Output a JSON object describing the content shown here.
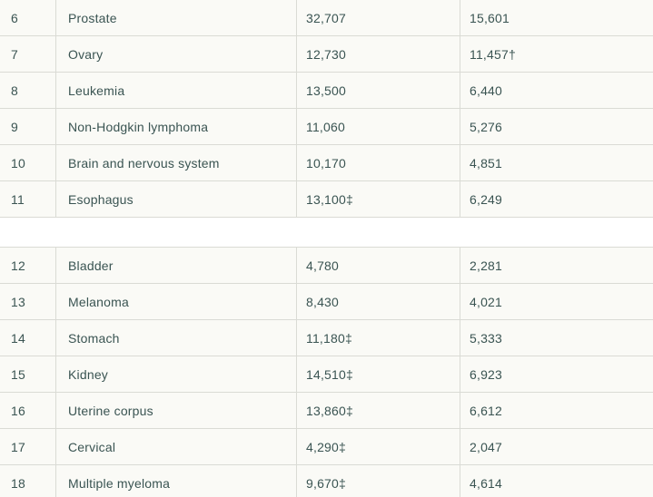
{
  "colors": {
    "text": "#3a5452",
    "row_background": "#fafaf6",
    "border": "#dadbd5",
    "gap_background": "#ffffff"
  },
  "footnote_symbols": {
    "dagger": "†",
    "double_dagger": "‡"
  },
  "tables": [
    {
      "rows": [
        [
          "6",
          "Prostate",
          "32,707",
          "15,601"
        ],
        [
          "7",
          "Ovary",
          "12,730",
          "11,457†"
        ],
        [
          "8",
          "Leukemia",
          "13,500",
          "6,440"
        ],
        [
          "9",
          "Non-Hodgkin lymphoma",
          "11,060",
          "5,276"
        ],
        [
          "10",
          "Brain and nervous system",
          "10,170",
          "4,851"
        ],
        [
          "11",
          "Esophagus",
          "13,100‡",
          "6,249"
        ]
      ]
    },
    {
      "rows": [
        [
          "12",
          "Bladder",
          "4,780",
          "2,281"
        ],
        [
          "13",
          "Melanoma",
          "8,430",
          "4,021"
        ],
        [
          "14",
          "Stomach",
          "11,180‡",
          "5,333"
        ],
        [
          "15",
          "Kidney",
          "14,510‡",
          "6,923"
        ],
        [
          "16",
          "Uterine corpus",
          "13,860‡",
          "6,612"
        ],
        [
          "17",
          "Cervical",
          "4,290‡",
          "2,047"
        ],
        [
          "18",
          "Multiple myeloma",
          "9,670‡",
          "4,614"
        ]
      ]
    }
  ]
}
